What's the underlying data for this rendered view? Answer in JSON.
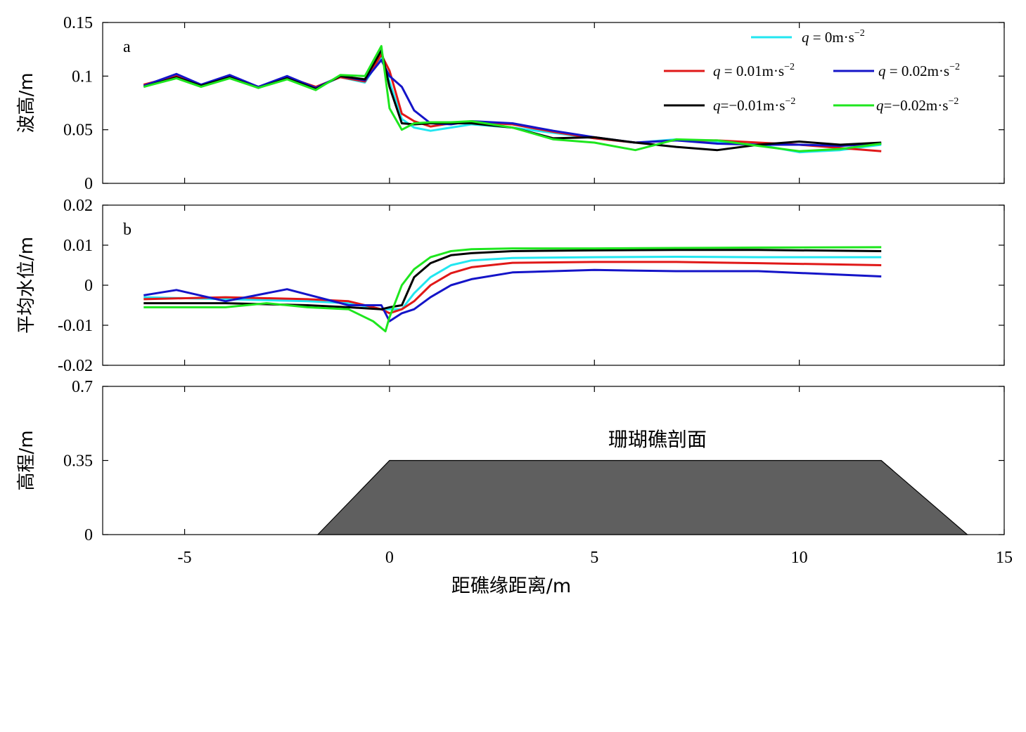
{
  "colors": {
    "q_0": "#22e6f0",
    "q_0.01": "#e01818",
    "q_0.02": "#1414c8",
    "q_-0.01": "#000000",
    "q_-0.02": "#1ee61e",
    "reef_fill": "#5f5f5f"
  },
  "chart_data": [
    {
      "type": "line",
      "panel": "a",
      "ylabel": "波高/m",
      "xlim": [
        -7,
        15
      ],
      "ylim": [
        0,
        0.15
      ],
      "yticks": [
        "0",
        "0.05",
        "0.1",
        "0.15"
      ],
      "grid": false,
      "legend_placement": "top-right",
      "legend": [
        {
          "key": "q_0",
          "prefix": "q",
          "label": " = 0m·s",
          "sup": "−2"
        },
        {
          "key": "q_0.01",
          "prefix": "q",
          "label": " = 0.01m·s",
          "sup": "−2"
        },
        {
          "key": "q_0.02",
          "prefix": "q",
          "label": " = 0.02m·s",
          "sup": "−2"
        },
        {
          "key": "q_-0.01",
          "prefix": "q",
          "label": "=−0.01m·s",
          "sup": "−2"
        },
        {
          "key": "q_-0.02",
          "prefix": "q",
          "label": "=−0.02m·s",
          "sup": "−2"
        }
      ],
      "series": [
        {
          "key": "q_0",
          "x": [
            -6,
            -5.2,
            -4.6,
            -3.9,
            -3.2,
            -2.5,
            -1.8,
            -1.2,
            -0.6,
            -0.2,
            0,
            0.3,
            0.6,
            1,
            1.5,
            2,
            3,
            4,
            5,
            6,
            7,
            8,
            9,
            10,
            11,
            12
          ],
          "y": [
            0.09,
            0.099,
            0.091,
            0.099,
            0.09,
            0.098,
            0.089,
            0.099,
            0.094,
            0.118,
            0.095,
            0.06,
            0.052,
            0.049,
            0.052,
            0.055,
            0.052,
            0.047,
            0.042,
            0.038,
            0.041,
            0.038,
            0.036,
            0.029,
            0.031,
            0.036
          ]
        },
        {
          "key": "q_0.01",
          "x": [
            -6,
            -5.2,
            -4.6,
            -3.9,
            -3.2,
            -2.5,
            -1.8,
            -1.2,
            -0.6,
            -0.2,
            0,
            0.3,
            0.6,
            1,
            1.5,
            2,
            3,
            4,
            5,
            6,
            7,
            8,
            9,
            10,
            11,
            12
          ],
          "y": [
            0.092,
            0.1,
            0.092,
            0.1,
            0.09,
            0.099,
            0.09,
            0.099,
            0.095,
            0.12,
            0.105,
            0.065,
            0.058,
            0.053,
            0.056,
            0.057,
            0.055,
            0.048,
            0.042,
            0.038,
            0.04,
            0.04,
            0.038,
            0.036,
            0.033,
            0.03
          ]
        },
        {
          "key": "q_0.02",
          "x": [
            -6,
            -5.2,
            -4.6,
            -3.9,
            -3.2,
            -2.5,
            -1.8,
            -1.2,
            -0.6,
            -0.2,
            0,
            0.3,
            0.6,
            1,
            1.5,
            2,
            3,
            4,
            5,
            6,
            7,
            8,
            9,
            10,
            11,
            12
          ],
          "y": [
            0.091,
            0.102,
            0.092,
            0.101,
            0.09,
            0.1,
            0.089,
            0.1,
            0.096,
            0.115,
            0.1,
            0.09,
            0.068,
            0.056,
            0.055,
            0.058,
            0.056,
            0.049,
            0.043,
            0.038,
            0.04,
            0.037,
            0.036,
            0.036,
            0.035,
            0.037
          ]
        },
        {
          "key": "q_-0.01",
          "x": [
            -6,
            -5.2,
            -4.6,
            -3.9,
            -3.2,
            -2.5,
            -1.8,
            -1.2,
            -0.6,
            -0.2,
            0,
            0.3,
            0.6,
            1,
            1.5,
            2,
            3,
            4,
            5,
            6,
            7,
            8,
            9,
            10,
            11,
            12
          ],
          "y": [
            0.09,
            0.099,
            0.091,
            0.099,
            0.089,
            0.098,
            0.088,
            0.1,
            0.097,
            0.124,
            0.09,
            0.056,
            0.055,
            0.056,
            0.056,
            0.056,
            0.052,
            0.042,
            0.043,
            0.038,
            0.034,
            0.031,
            0.036,
            0.039,
            0.036,
            0.038
          ]
        },
        {
          "key": "q_-0.02",
          "x": [
            -6,
            -5.2,
            -4.6,
            -3.9,
            -3.2,
            -2.5,
            -1.8,
            -1.2,
            -0.6,
            -0.2,
            0,
            0.3,
            0.6,
            1,
            1.5,
            2,
            3,
            4,
            5,
            6,
            7,
            8,
            9,
            10,
            11,
            12
          ],
          "y": [
            0.09,
            0.098,
            0.09,
            0.098,
            0.089,
            0.097,
            0.087,
            0.101,
            0.1,
            0.128,
            0.07,
            0.05,
            0.056,
            0.057,
            0.057,
            0.058,
            0.052,
            0.041,
            0.038,
            0.031,
            0.041,
            0.04,
            0.035,
            0.03,
            0.032,
            0.037
          ]
        }
      ]
    },
    {
      "type": "line",
      "panel": "b",
      "ylabel": "平均水位/m",
      "xlim": [
        -7,
        15
      ],
      "ylim": [
        -0.02,
        0.02
      ],
      "yticks": [
        "-0.02",
        "-0.01",
        "0",
        "0.01",
        "0.02"
      ],
      "grid": false,
      "series": [
        {
          "key": "q_0",
          "x": [
            -6,
            -4,
            -2,
            -1,
            -0.2,
            0,
            0.3,
            0.6,
            1,
            1.5,
            2,
            3,
            5,
            7,
            9,
            12
          ],
          "y": [
            -0.003,
            -0.0035,
            -0.004,
            -0.0045,
            -0.006,
            -0.006,
            -0.006,
            -0.002,
            0.002,
            0.005,
            0.0062,
            0.0068,
            0.007,
            0.0071,
            0.007,
            0.007
          ]
        },
        {
          "key": "q_0.01",
          "x": [
            -6,
            -4,
            -2,
            -1,
            -0.2,
            0,
            0.3,
            0.6,
            1,
            1.5,
            2,
            3,
            5,
            7,
            9,
            12
          ],
          "y": [
            -0.0035,
            -0.003,
            -0.0035,
            -0.004,
            -0.006,
            -0.007,
            -0.006,
            -0.004,
            0.0,
            0.003,
            0.0045,
            0.0056,
            0.0058,
            0.0058,
            0.0055,
            0.005
          ]
        },
        {
          "key": "q_0.02",
          "x": [
            -6,
            -5.2,
            -4,
            -2.5,
            -1,
            -0.2,
            0,
            0.3,
            0.6,
            1,
            1.5,
            2,
            3,
            5,
            7,
            9,
            12
          ],
          "y": [
            -0.0025,
            -0.0012,
            -0.004,
            -0.001,
            -0.005,
            -0.005,
            -0.009,
            -0.007,
            -0.006,
            -0.003,
            0.0,
            0.0015,
            0.0032,
            0.0038,
            0.0035,
            0.0035,
            0.0022
          ]
        },
        {
          "key": "q_-0.01",
          "x": [
            -6,
            -4,
            -2,
            -1,
            -0.2,
            0,
            0.3,
            0.6,
            1,
            1.5,
            2,
            3,
            5,
            7,
            9,
            12
          ],
          "y": [
            -0.0045,
            -0.0045,
            -0.005,
            -0.0055,
            -0.006,
            -0.0055,
            -0.005,
            0.002,
            0.0055,
            0.0075,
            0.008,
            0.0085,
            0.0087,
            0.0088,
            0.0088,
            0.0085
          ]
        },
        {
          "key": "q_-0.02",
          "x": [
            -6,
            -4,
            -3,
            -2,
            -1,
            -0.4,
            -0.1,
            0,
            0.3,
            0.6,
            1,
            1.5,
            2,
            3,
            5,
            7,
            9,
            12
          ],
          "y": [
            -0.0055,
            -0.0055,
            -0.0045,
            -0.0055,
            -0.006,
            -0.009,
            -0.0115,
            -0.008,
            0.0,
            0.004,
            0.007,
            0.0085,
            0.009,
            0.0092,
            0.0092,
            0.0093,
            0.0094,
            0.0095
          ]
        }
      ]
    },
    {
      "type": "area",
      "panel": "c",
      "ylabel": "高程/m",
      "xlabel": "距礁缘距离/m",
      "xlim": [
        -7,
        15
      ],
      "ylim": [
        0,
        0.7
      ],
      "xticks": [
        "-5",
        "0",
        "5",
        "10",
        "15"
      ],
      "yticks": [
        "0",
        "0.35",
        "0.7"
      ],
      "annotation": "珊瑚礁剖面",
      "reef_profile": {
        "x": [
          -1.75,
          0,
          12,
          14.1
        ],
        "y": [
          0,
          0.35,
          0.35,
          0
        ]
      }
    }
  ]
}
